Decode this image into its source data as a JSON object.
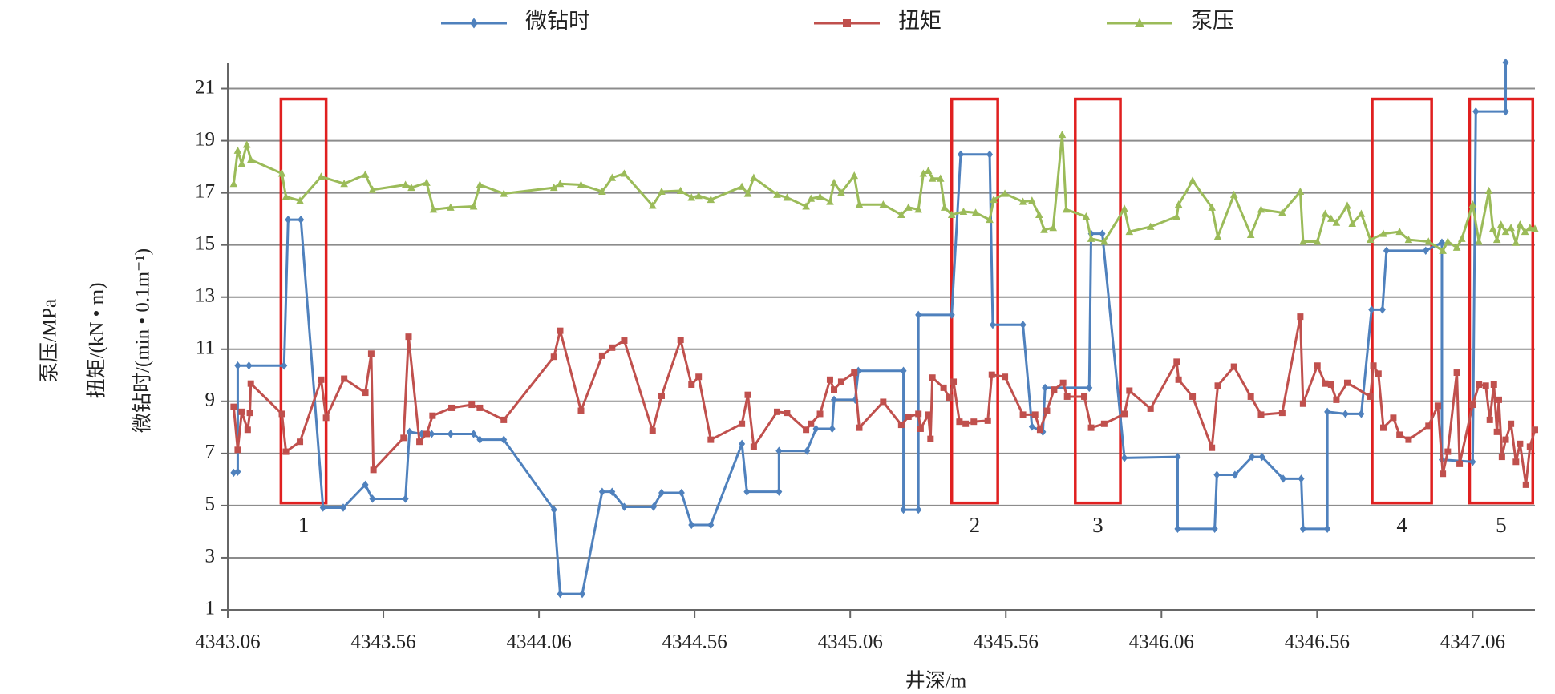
{
  "chart_data": {
    "type": "line",
    "xlabel": "井深/m",
    "ylabel": [
      "泵压/MPa",
      "扭矩/(kN • m)",
      "微钻时/(min • 0.1m⁻¹)"
    ],
    "xlim": [
      4343.06,
      4347.26
    ],
    "xticks": [
      4343.06,
      4343.56,
      4344.06,
      4344.56,
      4345.06,
      4345.56,
      4346.06,
      4346.56,
      4347.06
    ],
    "ylim": [
      1,
      22
    ],
    "yticks": [
      1,
      3,
      5,
      7,
      9,
      11,
      13,
      15,
      17,
      19,
      21
    ],
    "grid": true,
    "legend": "top",
    "annotations": [
      {
        "label": "1",
        "x": [
          4343.231,
          4343.376
        ],
        "y": [
          5.1,
          20.6
        ],
        "color": "#e02020"
      },
      {
        "label": "2",
        "x": [
          4345.386,
          4345.534
        ],
        "y": [
          5.1,
          20.6
        ],
        "color": "#e02020"
      },
      {
        "label": "3",
        "x": [
          4345.783,
          4345.928
        ],
        "y": [
          5.1,
          20.6
        ],
        "color": "#e02020"
      },
      {
        "label": "4",
        "x": [
          4346.737,
          4346.928
        ],
        "y": [
          5.1,
          20.6
        ],
        "color": "#e02020"
      },
      {
        "label": "5",
        "x": [
          4347.05,
          4347.253
        ],
        "y": [
          5.1,
          20.6
        ],
        "color": "#e02020"
      }
    ],
    "series": [
      {
        "name": "微钻时",
        "color": "#4f81bd",
        "marker": "diamond",
        "x": [
          4343.079,
          4343.092,
          4343.092,
          4343.128,
          4343.241,
          4343.254,
          4343.295,
          4343.366,
          4343.431,
          4343.502,
          4343.525,
          4343.631,
          4343.644,
          4343.683,
          4343.715,
          4343.776,
          4343.85,
          4343.87,
          4343.947,
          4344.108,
          4344.128,
          4344.199,
          4344.263,
          4344.295,
          4344.334,
          4344.428,
          4344.454,
          4344.518,
          4344.55,
          4344.612,
          4344.712,
          4344.728,
          4344.831,
          4344.831,
          4344.921,
          4344.95,
          4345.002,
          4345.008,
          4345.076,
          4345.086,
          4345.231,
          4345.231,
          4345.279,
          4345.279,
          4345.386,
          4345.415,
          4345.508,
          4345.518,
          4345.615,
          4345.644,
          4345.679,
          4345.686,
          4345.828,
          4345.834,
          4345.87,
          4345.941,
          4346.112,
          4346.112,
          4346.231,
          4346.238,
          4346.296,
          4346.351,
          4346.383,
          4346.451,
          4346.509,
          4346.515,
          4346.593,
          4346.593,
          4346.651,
          4346.702,
          4346.735,
          4346.77,
          4346.783,
          4346.909,
          4346.961,
          4346.961,
          4347.06,
          4347.07,
          4347.166,
          4347.166
        ],
        "values": [
          6.26,
          6.3,
          10.37,
          10.37,
          10.37,
          15.97,
          15.97,
          4.92,
          4.92,
          5.8,
          5.26,
          5.26,
          7.83,
          7.75,
          7.75,
          7.75,
          7.75,
          7.53,
          7.53,
          4.84,
          1.61,
          1.61,
          5.53,
          5.53,
          4.95,
          4.95,
          5.49,
          5.49,
          4.26,
          4.26,
          7.37,
          5.53,
          5.53,
          7.1,
          7.1,
          7.95,
          7.95,
          9.06,
          9.06,
          10.17,
          10.17,
          4.84,
          4.84,
          12.32,
          12.32,
          18.47,
          18.47,
          11.94,
          11.94,
          8.03,
          7.83,
          9.52,
          9.52,
          15.43,
          15.43,
          6.83,
          6.87,
          4.11,
          4.11,
          6.18,
          6.18,
          6.87,
          6.87,
          6.03,
          6.03,
          4.11,
          4.11,
          8.6,
          8.52,
          8.52,
          12.52,
          12.52,
          14.78,
          14.78,
          15.09,
          6.76,
          6.68,
          20.12,
          20.12,
          22
        ]
      },
      {
        "name": "扭矩",
        "color": "#c0504d",
        "marker": "square",
        "x": [
          4343.079,
          4343.092,
          4343.105,
          4343.124,
          4343.131,
          4343.134,
          4343.234,
          4343.247,
          4343.292,
          4343.36,
          4343.376,
          4343.434,
          4343.502,
          4343.521,
          4343.528,
          4343.625,
          4343.641,
          4343.676,
          4343.699,
          4343.718,
          4343.779,
          4343.844,
          4343.87,
          4343.947,
          4344.108,
          4344.128,
          4344.195,
          4344.263,
          4344.295,
          4344.334,
          4344.425,
          4344.454,
          4344.515,
          4344.55,
          4344.573,
          4344.612,
          4344.712,
          4344.731,
          4344.75,
          4344.825,
          4344.857,
          4344.918,
          4344.934,
          4344.963,
          4344.995,
          4345.008,
          4345.031,
          4345.073,
          4345.089,
          4345.166,
          4345.224,
          4345.247,
          4345.279,
          4345.286,
          4345.311,
          4345.318,
          4345.324,
          4345.36,
          4345.379,
          4345.392,
          4345.411,
          4345.431,
          4345.457,
          4345.502,
          4345.515,
          4345.557,
          4345.615,
          4345.654,
          4345.67,
          4345.692,
          4345.715,
          4345.744,
          4345.757,
          4345.812,
          4345.834,
          4345.876,
          4345.941,
          4345.957,
          4346.025,
          4346.109,
          4346.115,
          4346.16,
          4346.222,
          4346.241,
          4346.293,
          4346.347,
          4346.38,
          4346.448,
          4346.506,
          4346.515,
          4346.561,
          4346.586,
          4346.605,
          4346.622,
          4346.657,
          4346.731,
          4346.741,
          4346.757,
          4346.773,
          4346.805,
          4346.825,
          4346.854,
          4346.918,
          4346.948,
          4346.964,
          4346.98,
          4347.009,
          4347.018,
          4347.06,
          4347.08,
          4347.102,
          4347.115,
          4347.128,
          4347.138,
          4347.144,
          4347.154,
          4347.166,
          4347.183,
          4347.199,
          4347.212,
          4347.231,
          4347.244,
          4347.26
        ],
        "values": [
          8.79,
          7.14,
          8.6,
          7.91,
          8.56,
          9.68,
          8.52,
          7.07,
          7.45,
          9.83,
          8.37,
          9.87,
          9.33,
          10.83,
          6.37,
          7.6,
          11.48,
          7.45,
          7.75,
          8.45,
          8.75,
          8.87,
          8.75,
          8.29,
          10.71,
          11.71,
          8.64,
          10.75,
          11.06,
          11.33,
          7.87,
          9.21,
          11.36,
          9.64,
          9.94,
          7.53,
          8.14,
          9.25,
          7.26,
          8.6,
          8.56,
          7.91,
          8.14,
          8.52,
          9.83,
          9.45,
          9.75,
          10.1,
          7.99,
          8.98,
          8.1,
          8.41,
          8.52,
          7.95,
          8.49,
          7.56,
          9.91,
          9.52,
          9.14,
          9.75,
          8.22,
          8.14,
          8.22,
          8.26,
          10.02,
          9.94,
          8.49,
          8.49,
          7.91,
          8.64,
          9.45,
          9.71,
          9.18,
          9.18,
          7.99,
          8.14,
          8.52,
          9.41,
          8.72,
          10.52,
          9.83,
          9.18,
          7.22,
          9.6,
          10.33,
          9.18,
          8.49,
          8.56,
          12.25,
          8.91,
          10.37,
          9.68,
          9.64,
          9.06,
          9.71,
          9.18,
          10.37,
          10.06,
          7.99,
          8.37,
          7.72,
          7.53,
          8.06,
          8.83,
          6.22,
          7.07,
          10.1,
          6.6,
          8.87,
          9.64,
          9.6,
          8.29,
          9.64,
          7.83,
          9.06,
          6.87,
          7.53,
          8.14,
          6.68,
          7.37,
          5.8,
          7.26,
          7.91
        ]
      },
      {
        "name": "泵压",
        "color": "#9bbb59",
        "marker": "triangle",
        "x": [
          4343.079,
          4343.092,
          4343.105,
          4343.121,
          4343.134,
          4343.234,
          4343.247,
          4343.292,
          4343.36,
          4343.434,
          4343.502,
          4343.525,
          4343.631,
          4343.65,
          4343.699,
          4343.721,
          4343.776,
          4343.85,
          4343.87,
          4343.947,
          4344.108,
          4344.128,
          4344.195,
          4344.263,
          4344.295,
          4344.334,
          4344.425,
          4344.454,
          4344.515,
          4344.55,
          4344.573,
          4344.612,
          4344.712,
          4344.731,
          4344.75,
          4344.825,
          4344.857,
          4344.918,
          4344.934,
          4344.963,
          4344.995,
          4345.008,
          4345.031,
          4345.073,
          4345.089,
          4345.166,
          4345.224,
          4345.247,
          4345.279,
          4345.295,
          4345.311,
          4345.324,
          4345.35,
          4345.363,
          4345.386,
          4345.424,
          4345.463,
          4345.508,
          4345.521,
          4345.557,
          4345.615,
          4345.644,
          4345.667,
          4345.683,
          4345.712,
          4345.741,
          4345.754,
          4345.818,
          4345.834,
          4345.876,
          4345.941,
          4345.957,
          4346.025,
          4346.109,
          4346.115,
          4346.16,
          4346.222,
          4346.241,
          4346.293,
          4346.347,
          4346.38,
          4346.448,
          4346.506,
          4346.515,
          4346.561,
          4346.586,
          4346.605,
          4346.622,
          4346.657,
          4346.673,
          4346.702,
          4346.731,
          4346.773,
          4346.825,
          4346.854,
          4346.918,
          4346.964,
          4346.98,
          4347.009,
          4347.025,
          4347.06,
          4347.08,
          4347.112,
          4347.125,
          4347.138,
          4347.151,
          4347.166,
          4347.183,
          4347.199,
          4347.212,
          4347.228,
          4347.244,
          4347.26
        ],
        "values": [
          17.35,
          18.62,
          18.12,
          18.85,
          18.27,
          17.74,
          16.85,
          16.7,
          17.62,
          17.35,
          17.7,
          17.12,
          17.31,
          17.2,
          17.39,
          16.36,
          16.44,
          16.48,
          17.31,
          16.97,
          17.2,
          17.35,
          17.31,
          17.05,
          17.58,
          17.74,
          16.51,
          17.05,
          17.08,
          16.82,
          16.89,
          16.74,
          17.24,
          16.97,
          17.58,
          16.93,
          16.82,
          16.48,
          16.78,
          16.85,
          16.66,
          17.39,
          17.01,
          17.66,
          16.55,
          16.55,
          16.16,
          16.44,
          16.36,
          17.74,
          17.85,
          17.55,
          17.55,
          16.44,
          16.16,
          16.28,
          16.24,
          15.97,
          16.74,
          16.97,
          16.66,
          16.7,
          16.16,
          15.58,
          15.66,
          19.23,
          16.36,
          16.09,
          15.24,
          15.13,
          16.39,
          15.51,
          15.7,
          16.09,
          16.55,
          17.47,
          16.44,
          15.32,
          16.93,
          15.39,
          16.36,
          16.24,
          17.05,
          15.13,
          15.13,
          16.2,
          16.01,
          15.86,
          16.51,
          15.82,
          16.2,
          15.2,
          15.43,
          15.51,
          15.2,
          15.13,
          14.78,
          15.13,
          14.9,
          15.24,
          16.55,
          15.13,
          17.08,
          15.62,
          15.2,
          15.78,
          15.51,
          15.66,
          15.09,
          15.78,
          15.51,
          15.66,
          15.62
        ]
      }
    ]
  }
}
